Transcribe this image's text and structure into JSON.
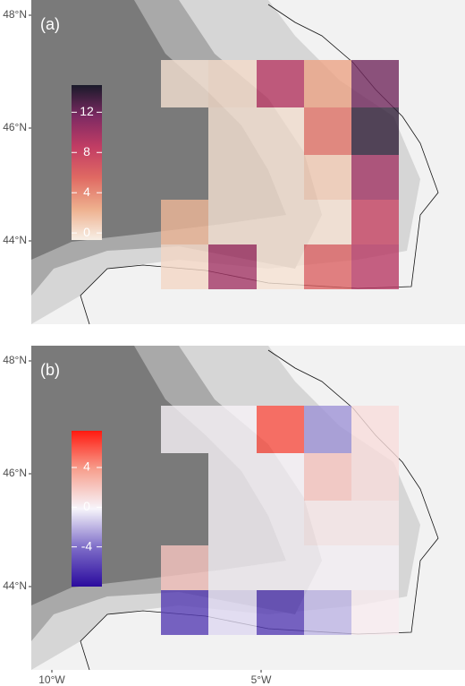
{
  "map_data": {
    "lat_ticks": [
      {
        "value": 48,
        "label": "48°N"
      },
      {
        "value": 46,
        "label": "46°N"
      },
      {
        "value": 44,
        "label": "44°N"
      }
    ],
    "lon_ticks": [
      {
        "value": -10,
        "label": "10°W"
      },
      {
        "value": -5,
        "label": "5°W"
      }
    ],
    "panels": [
      {
        "label": "(a)",
        "clim": [
          -0.7,
          14.7
        ],
        "cticks": [
          0,
          4,
          8,
          12
        ],
        "colormap": [
          "#f7efe6",
          "#eeb08e",
          "#e06a63",
          "#c23d64",
          "#7d2a63",
          "#1a1a2a"
        ],
        "values": [
          [
            0,
            0.3,
            9,
            3,
            12
          ],
          [
            null,
            0,
            0,
            5,
            14
          ],
          [
            null,
            0,
            0,
            1,
            10
          ],
          [
            2,
            0,
            0,
            0,
            8
          ],
          [
            0.5,
            10,
            0,
            6,
            9
          ]
        ]
      },
      {
        "label": "(b)",
        "clim": [
          -8,
          7.7
        ],
        "cticks": [
          -4,
          0,
          4
        ],
        "colormap": [
          "#2b0b9e",
          "#7d6cc8",
          "#f7f5fb",
          "#f7a08f",
          "#ff1a10"
        ],
        "values": [
          [
            0,
            0,
            6,
            -3,
            1
          ],
          [
            null,
            0,
            0,
            2,
            1
          ],
          [
            null,
            0,
            0,
            0.5,
            0.5
          ],
          [
            2,
            0,
            0,
            0,
            0
          ],
          [
            -6,
            -1,
            -6,
            -2,
            0.3
          ]
        ]
      }
    ]
  }
}
